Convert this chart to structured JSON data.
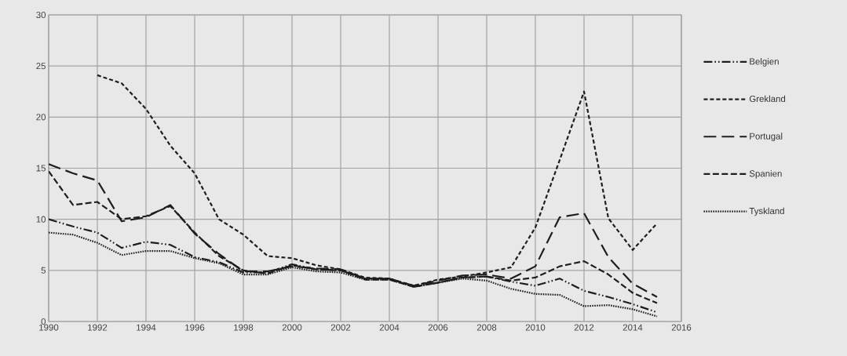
{
  "chart_data": {
    "type": "line",
    "x": [
      1990,
      1991,
      1992,
      1993,
      1994,
      1995,
      1996,
      1997,
      1998,
      1999,
      2000,
      2001,
      2002,
      2003,
      2004,
      2005,
      2006,
      2007,
      2008,
      2009,
      2010,
      2011,
      2012,
      2013,
      2014,
      2015
    ],
    "xlim": [
      1990,
      2016
    ],
    "xticks": [
      1990,
      1992,
      1994,
      1996,
      1998,
      2000,
      2002,
      2004,
      2006,
      2008,
      2010,
      2012,
      2014,
      2016
    ],
    "ylim": [
      0,
      30
    ],
    "yticks": [
      0,
      5,
      10,
      15,
      20,
      25,
      30
    ],
    "grid": true,
    "legend": "right",
    "marker": "none",
    "series": [
      {
        "name": "Belgien",
        "color": "#1e1e1e",
        "line_style": "dashdotdot",
        "values": [
          10.0,
          9.3,
          8.7,
          7.2,
          7.8,
          7.5,
          6.3,
          5.8,
          4.8,
          4.8,
          5.6,
          5.1,
          5.0,
          4.2,
          4.2,
          3.4,
          3.8,
          4.3,
          4.4,
          3.9,
          3.5,
          4.2,
          3.0,
          2.4,
          1.7,
          0.9
        ]
      },
      {
        "name": "Grekland",
        "color": "#1e1e1e",
        "line_style": "densely dashed",
        "values": [
          null,
          null,
          24.1,
          23.3,
          20.8,
          17.2,
          14.5,
          10.0,
          8.5,
          6.4,
          6.2,
          5.5,
          5.1,
          4.3,
          4.2,
          3.5,
          4.1,
          4.4,
          4.8,
          5.3,
          9.2,
          15.8,
          22.5,
          10.1,
          7.0,
          9.6
        ]
      },
      {
        "name": "Portugal",
        "color": "#1e1e1e",
        "line_style": "long dashed",
        "values": [
          15.4,
          14.5,
          13.8,
          9.8,
          10.2,
          11.4,
          8.6,
          6.6,
          4.9,
          4.9,
          5.4,
          5.2,
          5.1,
          4.2,
          4.2,
          3.5,
          4.0,
          4.5,
          4.6,
          4.2,
          5.4,
          10.2,
          10.6,
          6.3,
          3.7,
          2.4
        ]
      },
      {
        "name": "Spanien",
        "color": "#1e1e1e",
        "line_style": "dashed",
        "values": [
          14.7,
          11.4,
          11.7,
          10.0,
          10.3,
          11.3,
          8.7,
          6.4,
          5.0,
          4.7,
          5.5,
          5.1,
          5.0,
          4.1,
          4.1,
          3.4,
          3.8,
          4.3,
          4.4,
          4.0,
          4.3,
          5.4,
          5.9,
          4.6,
          2.8,
          1.8
        ]
      },
      {
        "name": "Tyskland",
        "color": "#1e1e1e",
        "line_style": "dotted",
        "values": [
          8.7,
          8.5,
          7.7,
          6.5,
          6.9,
          6.9,
          6.2,
          5.7,
          4.6,
          4.6,
          5.3,
          4.9,
          4.8,
          4.1,
          4.1,
          3.4,
          3.8,
          4.2,
          4.0,
          3.2,
          2.7,
          2.6,
          1.5,
          1.6,
          1.2,
          0.5
        ]
      }
    ]
  }
}
